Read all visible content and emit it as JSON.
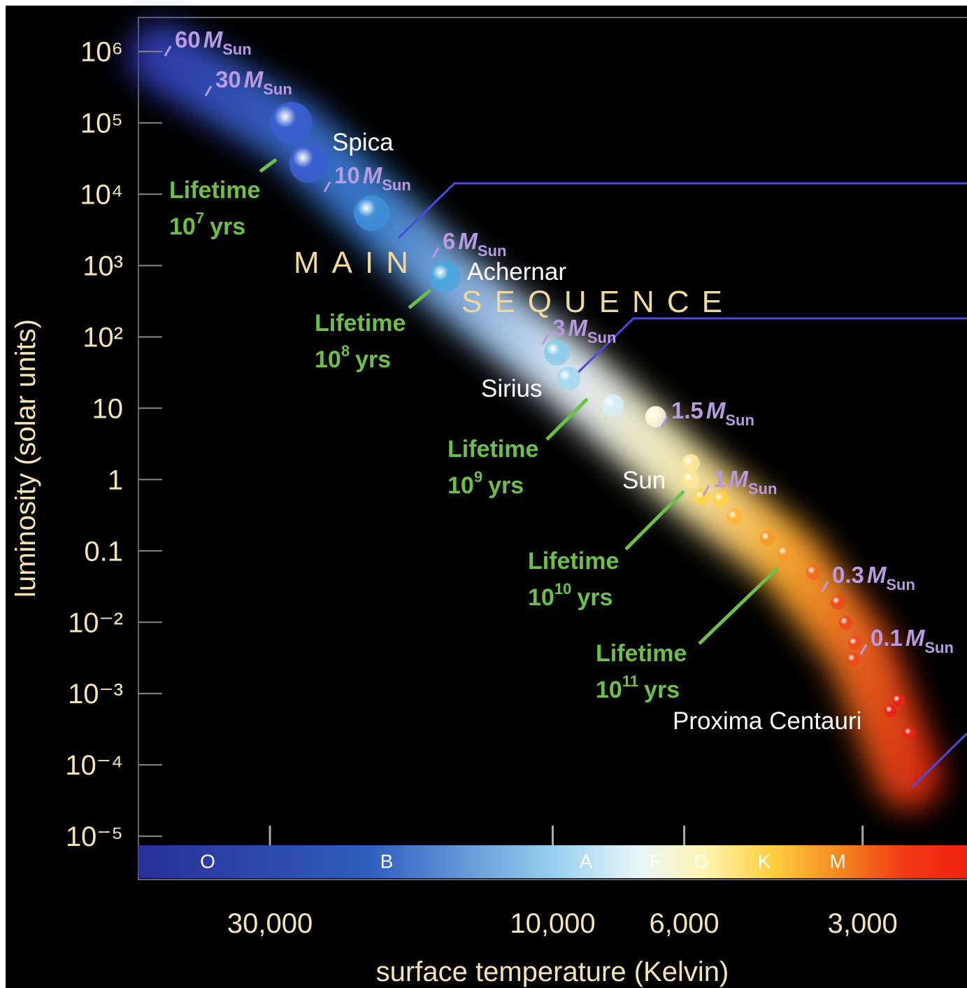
{
  "chart_data": {
    "type": "scatter",
    "x_label": "surface temperature (Kelvin)",
    "y_label": "luminosity (solar units)",
    "xlog": true,
    "ylog": true,
    "grid": false,
    "xlim": [
      50000,
      2000
    ],
    "ylim": [
      8e-06,
      3000000
    ],
    "xticks": [
      {
        "value": 30000,
        "label": "30,000"
      },
      {
        "value": 10000,
        "label": "10,000"
      },
      {
        "value": 6000,
        "label": "6,000"
      },
      {
        "value": 3000,
        "label": "3,000"
      }
    ],
    "yticks": [
      {
        "value": 1000000,
        "label": "10⁶"
      },
      {
        "value": 100000,
        "label": "10⁵"
      },
      {
        "value": 10000,
        "label": "10⁴"
      },
      {
        "value": 1000,
        "label": "10³"
      },
      {
        "value": 100,
        "label": "10²"
      },
      10,
      1,
      0.1,
      {
        "value": 0.01,
        "label": "10⁻²"
      },
      {
        "value": 0.001,
        "label": "10⁻³"
      },
      {
        "value": 0.0001,
        "label": "10⁻⁴"
      },
      {
        "value": 1e-05,
        "label": "10⁻⁵"
      }
    ],
    "x": [
      27600,
      25800,
      20200,
      15200,
      9840,
      9400,
      7920,
      6700,
      5850,
      5850,
      5610,
      5200,
      4930,
      4340,
      4060,
      3630,
      3300,
      3200,
      3090,
      3110,
      2610,
      2690,
      2500
    ],
    "values": [
      100000,
      27000,
      5400,
      690,
      60,
      26,
      11,
      7.6,
      1.7,
      1.0,
      0.57,
      0.53,
      0.3,
      0.15,
      0.093,
      0.05,
      0.019,
      0.0098,
      0.0051,
      0.003,
      0.0008,
      0.00057,
      0.00028
    ],
    "colors": [
      "#3a5fd0",
      "#3a5fd0",
      "#3f8fd8",
      "#49a6dc",
      "#8ccbe8",
      "#a8d8ef",
      "#d8eef8",
      "#fff6dc",
      "#ffe79a",
      "#ffe79a",
      "#ffd24a",
      "#ffd24a",
      "#ffb83a",
      "#f59a2a",
      "#f59a2a",
      "#f06a1e",
      "#ee4a1a",
      "#ee4a1a",
      "#ee4a1a",
      "#ee4a1a",
      "#e8231a",
      "#e8231a",
      "#e8231a"
    ],
    "spectral_classes": [
      "O",
      "B",
      "A",
      "F",
      "G",
      "K",
      "M"
    ],
    "sequence_label": [
      "MAIN",
      "SEQUENCE"
    ],
    "star_labels": [
      "Spica",
      "Achernar",
      "Sirius",
      "Sun",
      "Proxima Centauri"
    ],
    "mass_labels": [
      {
        "number": 60,
        "symbol": "M",
        "subscript": "Sun"
      },
      {
        "number": 30,
        "symbol": "M",
        "subscript": "Sun"
      },
      {
        "number": 10,
        "symbol": "M",
        "subscript": "Sun"
      },
      {
        "number": 6,
        "symbol": "M",
        "subscript": "Sun"
      },
      {
        "number": 3,
        "symbol": "M",
        "subscript": "Sun"
      },
      {
        "number": 1.5,
        "symbol": "M",
        "subscript": "Sun"
      },
      {
        "number": 1,
        "symbol": "M",
        "subscript": "Sun"
      },
      {
        "number": 0.3,
        "symbol": "M",
        "subscript": "Sun"
      },
      {
        "number": 0.1,
        "symbol": "M",
        "subscript": "Sun"
      }
    ],
    "lifetime_labels": [
      {
        "title": "Lifetime",
        "base": 10,
        "exponent": 7,
        "unit": "yrs"
      },
      {
        "title": "Lifetime",
        "base": 10,
        "exponent": 8,
        "unit": "yrs"
      },
      {
        "title": "Lifetime",
        "base": 10,
        "exponent": 9,
        "unit": "yrs"
      },
      {
        "title": "Lifetime",
        "base": 10,
        "exponent": 10,
        "unit": "yrs"
      },
      {
        "title": "Lifetime",
        "base": 10,
        "exponent": 11,
        "unit": "yrs"
      }
    ]
  }
}
